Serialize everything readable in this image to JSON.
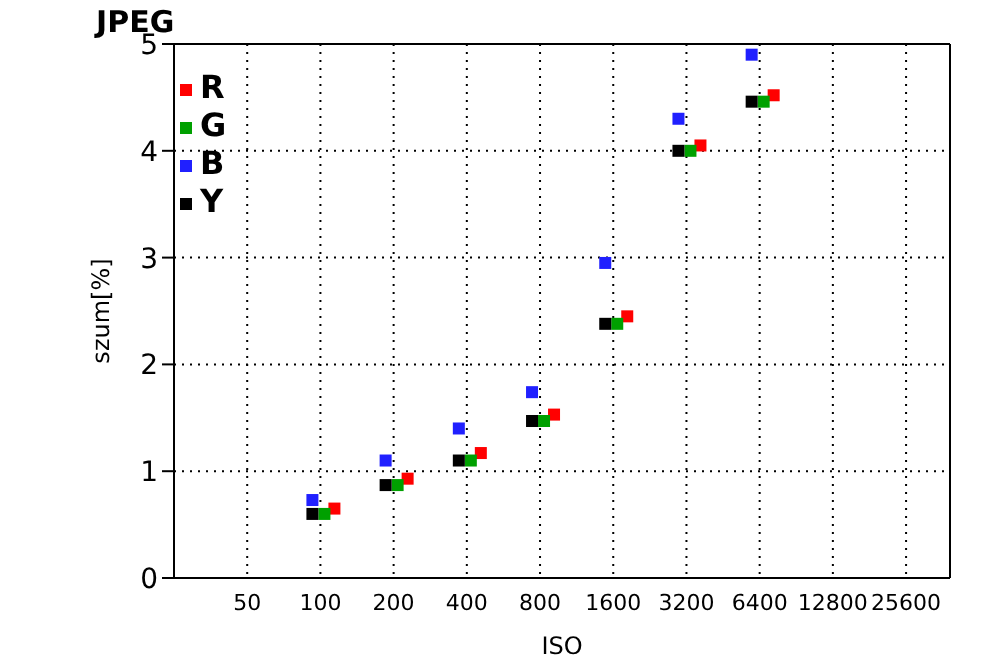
{
  "chart_data": {
    "type": "scatter",
    "title": "JPEG",
    "xlabel": "ISO",
    "ylabel": "szum[%]",
    "categories": [
      "50",
      "100",
      "200",
      "400",
      "800",
      "1600",
      "3200",
      "6400",
      "12800",
      "25600"
    ],
    "series": [
      {
        "name": "R",
        "color": "#ff0000",
        "values": [
          null,
          0.65,
          0.93,
          1.17,
          1.53,
          2.45,
          4.05,
          4.52,
          null,
          null
        ]
      },
      {
        "name": "G",
        "color": "#00a000",
        "values": [
          null,
          0.6,
          0.87,
          1.1,
          1.47,
          2.38,
          4.0,
          4.46,
          null,
          null
        ]
      },
      {
        "name": "B",
        "color": "#2020ff",
        "values": [
          null,
          0.73,
          1.1,
          1.4,
          1.74,
          2.95,
          4.3,
          4.9,
          null,
          null
        ]
      },
      {
        "name": "Y",
        "color": "#000000",
        "values": [
          null,
          0.6,
          0.87,
          1.1,
          1.47,
          2.38,
          4.0,
          4.46,
          null,
          null
        ]
      }
    ],
    "ylim": [
      0,
      5
    ],
    "yticks": [
      0,
      1,
      2,
      3,
      4,
      5
    ],
    "grid": true,
    "legend": "top left",
    "marker": "square"
  }
}
